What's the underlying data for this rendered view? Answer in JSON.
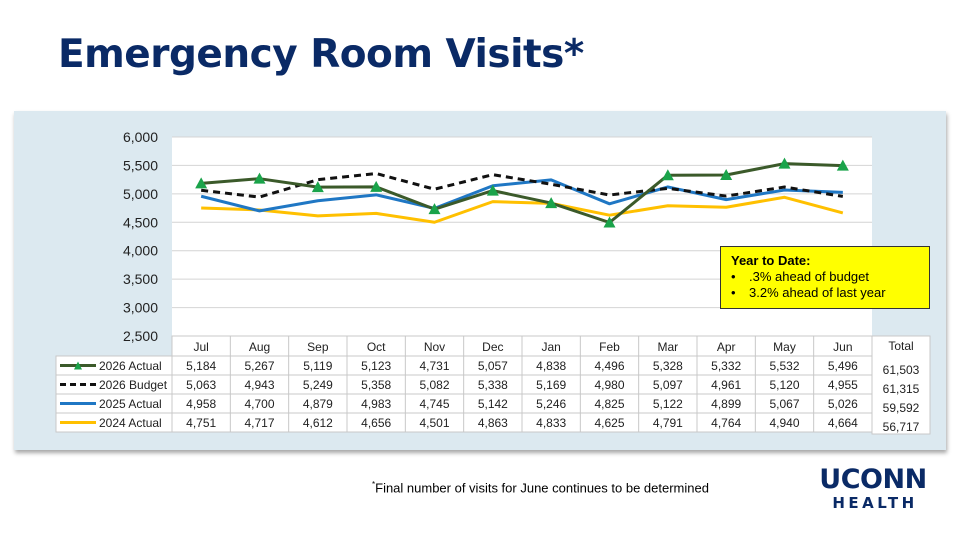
{
  "slide": {
    "title": "Emergency Room Visits*",
    "footnote_mark": "*",
    "footnote": "Final number of visits for June continues to be determined",
    "logo_top": "UCONN",
    "logo_bottom": "HEALTH"
  },
  "ytd_box": {
    "title": "Year to Date:",
    "items": [
      ".3% ahead of budget",
      "3.2% ahead of last year"
    ],
    "bullet": "•",
    "background": "#ffff00"
  },
  "chart_data": {
    "type": "line",
    "categories": [
      "Jul",
      "Aug",
      "Sep",
      "Oct",
      "Nov",
      "Dec",
      "Jan",
      "Feb",
      "Mar",
      "Apr",
      "May",
      "Jun"
    ],
    "ylim": [
      2500,
      6000
    ],
    "yticks": [
      2500,
      3000,
      3500,
      4000,
      4500,
      5000,
      5500,
      6000
    ],
    "grid": true,
    "legend": "data-table",
    "total_header": "Total",
    "series": [
      {
        "name": "2026 Actual",
        "color": "#3b5a2a",
        "marker": "triangle",
        "marker_color": "#1aa34a",
        "dash": false,
        "values": [
          5184,
          5267,
          5119,
          5123,
          4731,
          5057,
          4838,
          4496,
          5328,
          5332,
          5532,
          5496
        ],
        "total": "61,503"
      },
      {
        "name": "2026 Budget",
        "color": "#111111",
        "marker": "none",
        "dash": true,
        "values": [
          5063,
          4943,
          5249,
          5358,
          5082,
          5338,
          5169,
          4980,
          5097,
          4961,
          5120,
          4955
        ],
        "total": "61,315"
      },
      {
        "name": "2025 Actual",
        "color": "#1f77c4",
        "marker": "none",
        "dash": false,
        "values": [
          4958,
          4700,
          4879,
          4983,
          4745,
          5142,
          5246,
          4825,
          5122,
          4899,
          5067,
          5026
        ],
        "total": "59,592"
      },
      {
        "name": "2024 Actual",
        "color": "#ffc000",
        "marker": "none",
        "dash": false,
        "values": [
          4751,
          4717,
          4612,
          4656,
          4501,
          4863,
          4833,
          4625,
          4791,
          4764,
          4940,
          4664
        ],
        "total": "56,717"
      }
    ]
  },
  "colors": {
    "title": "#0a2a66",
    "panel_bg": "#dce9f0"
  }
}
